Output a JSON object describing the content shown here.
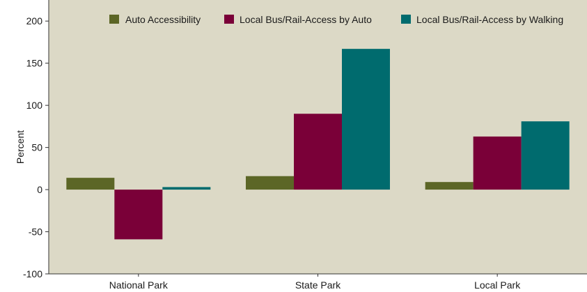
{
  "chart_data": {
    "type": "bar",
    "title": "",
    "xlabel": "",
    "ylabel": "Percent",
    "ylim": [
      -100,
      225
    ],
    "yticks": [
      -100,
      -50,
      0,
      50,
      100,
      150,
      200
    ],
    "categories": [
      "National Park",
      "State Park",
      "Local Park"
    ],
    "series": [
      {
        "name": "Auto Accessibility",
        "color": "#5c6626",
        "values": [
          14,
          16,
          9
        ]
      },
      {
        "name": "Local Bus/Rail-Access by Auto",
        "color": "#7a0038",
        "values": [
          -59,
          90,
          63
        ]
      },
      {
        "name": "Local Bus/Rail-Access by Walking",
        "color": "#006b6e",
        "values": [
          3,
          167,
          81
        ]
      }
    ],
    "grid": false,
    "legend_position": "top-right",
    "plot_background": "#dcd9c6"
  }
}
